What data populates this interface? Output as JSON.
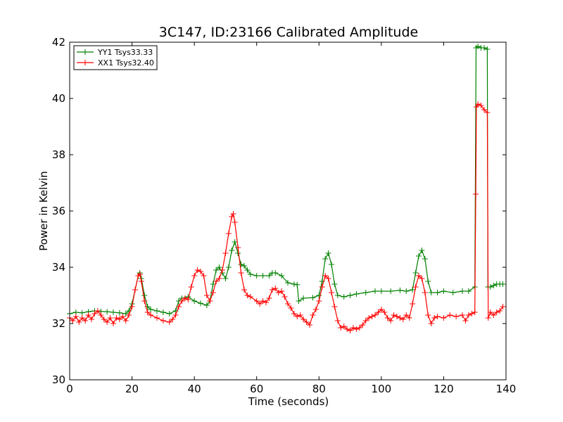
{
  "chart_data": {
    "type": "line",
    "title": "3C147, ID:23166 Calibrated Amplitude",
    "xlabel": "Time (seconds)",
    "ylabel": "Power in Kelvin",
    "xlim": [
      0,
      140
    ],
    "ylim": [
      30,
      42
    ],
    "x_ticks": [
      0,
      20,
      40,
      60,
      80,
      100,
      120,
      140
    ],
    "y_ticks": [
      30,
      32,
      34,
      36,
      38,
      40,
      42
    ],
    "grid": false,
    "legend_position": "top-left",
    "series": [
      {
        "name": "YY1 Tsys33.33",
        "color": "#008000",
        "marker": "+",
        "points": [
          [
            0,
            32.35
          ],
          [
            2,
            32.4
          ],
          [
            4,
            32.38
          ],
          [
            6,
            32.42
          ],
          [
            8,
            32.45
          ],
          [
            10,
            32.43
          ],
          [
            12,
            32.42
          ],
          [
            14,
            32.4
          ],
          [
            16,
            32.38
          ],
          [
            18,
            32.35
          ],
          [
            19,
            32.45
          ],
          [
            20,
            32.7
          ],
          [
            21,
            33.2
          ],
          [
            22,
            33.7
          ],
          [
            22.5,
            33.8
          ],
          [
            23,
            33.6
          ],
          [
            24,
            33.0
          ],
          [
            25,
            32.6
          ],
          [
            26,
            32.5
          ],
          [
            28,
            32.45
          ],
          [
            30,
            32.4
          ],
          [
            32,
            32.35
          ],
          [
            34,
            32.45
          ],
          [
            35,
            32.8
          ],
          [
            36,
            32.9
          ],
          [
            38,
            32.95
          ],
          [
            40,
            32.8
          ],
          [
            42,
            32.72
          ],
          [
            44,
            32.65
          ],
          [
            45,
            32.8
          ],
          [
            46,
            33.4
          ],
          [
            47,
            33.9
          ],
          [
            48,
            34.0
          ],
          [
            49,
            33.8
          ],
          [
            50,
            33.6
          ],
          [
            51,
            34.0
          ],
          [
            52,
            34.6
          ],
          [
            53,
            34.9
          ],
          [
            54,
            34.5
          ],
          [
            55,
            34.1
          ],
          [
            56,
            34.05
          ],
          [
            57,
            33.9
          ],
          [
            58,
            33.75
          ],
          [
            60,
            33.7
          ],
          [
            62,
            33.7
          ],
          [
            64,
            33.7
          ],
          [
            65,
            33.8
          ],
          [
            66,
            33.8
          ],
          [
            68,
            33.7
          ],
          [
            70,
            33.45
          ],
          [
            72,
            33.4
          ],
          [
            73,
            33.38
          ],
          [
            73.5,
            32.8
          ],
          [
            75,
            32.9
          ],
          [
            78,
            32.92
          ],
          [
            80,
            33.0
          ],
          [
            81,
            33.5
          ],
          [
            82,
            34.3
          ],
          [
            83,
            34.5
          ],
          [
            84,
            34.1
          ],
          [
            85,
            33.4
          ],
          [
            86,
            33.0
          ],
          [
            88,
            32.95
          ],
          [
            90,
            33.0
          ],
          [
            92,
            33.05
          ],
          [
            95,
            33.1
          ],
          [
            98,
            33.15
          ],
          [
            100,
            33.15
          ],
          [
            103,
            33.15
          ],
          [
            106,
            33.18
          ],
          [
            108,
            33.15
          ],
          [
            110,
            33.2
          ],
          [
            111,
            33.8
          ],
          [
            112,
            34.4
          ],
          [
            113,
            34.6
          ],
          [
            114,
            34.3
          ],
          [
            115,
            33.5
          ],
          [
            116,
            33.1
          ],
          [
            118,
            33.1
          ],
          [
            120,
            33.15
          ],
          [
            123,
            33.1
          ],
          [
            126,
            33.15
          ],
          [
            128,
            33.15
          ],
          [
            130,
            33.3
          ],
          [
            130.4,
            41.8
          ],
          [
            131,
            41.85
          ],
          [
            132,
            41.8
          ],
          [
            133,
            41.8
          ],
          [
            134,
            41.75
          ],
          [
            134.2,
            33.3
          ],
          [
            135,
            33.3
          ],
          [
            136,
            33.35
          ],
          [
            137,
            33.4
          ],
          [
            138,
            33.4
          ],
          [
            139,
            33.4
          ]
        ]
      },
      {
        "name": "XX1 Tsys32.40",
        "color": "#ff0000",
        "marker": "+",
        "points": [
          [
            0,
            32.2
          ],
          [
            1,
            32.1
          ],
          [
            2,
            32.25
          ],
          [
            3,
            32.05
          ],
          [
            4,
            32.2
          ],
          [
            5,
            32.1
          ],
          [
            6,
            32.3
          ],
          [
            7,
            32.15
          ],
          [
            8,
            32.35
          ],
          [
            9,
            32.45
          ],
          [
            10,
            32.3
          ],
          [
            11,
            32.15
          ],
          [
            12,
            32.05
          ],
          [
            13,
            32.2
          ],
          [
            14,
            32.0
          ],
          [
            15,
            32.2
          ],
          [
            16,
            32.15
          ],
          [
            17,
            32.25
          ],
          [
            18,
            32.1
          ],
          [
            19,
            32.3
          ],
          [
            20,
            32.6
          ],
          [
            21,
            33.2
          ],
          [
            22,
            33.7
          ],
          [
            22.6,
            33.75
          ],
          [
            23,
            33.5
          ],
          [
            24,
            32.8
          ],
          [
            25,
            32.4
          ],
          [
            26,
            32.3
          ],
          [
            28,
            32.2
          ],
          [
            30,
            32.1
          ],
          [
            32,
            32.05
          ],
          [
            33,
            32.15
          ],
          [
            34,
            32.3
          ],
          [
            35,
            32.6
          ],
          [
            36,
            32.8
          ],
          [
            37,
            32.9
          ],
          [
            38,
            32.85
          ],
          [
            39,
            33.3
          ],
          [
            40,
            33.7
          ],
          [
            41,
            33.9
          ],
          [
            42,
            33.85
          ],
          [
            43,
            33.7
          ],
          [
            44,
            33.0
          ],
          [
            45,
            32.8
          ],
          [
            46,
            33.1
          ],
          [
            47,
            33.5
          ],
          [
            48,
            33.6
          ],
          [
            49,
            33.9
          ],
          [
            50,
            34.5
          ],
          [
            51,
            35.2
          ],
          [
            52,
            35.8
          ],
          [
            52.5,
            35.9
          ],
          [
            53,
            35.6
          ],
          [
            54,
            34.7
          ],
          [
            55,
            33.8
          ],
          [
            56,
            33.2
          ],
          [
            57,
            33.0
          ],
          [
            58,
            32.95
          ],
          [
            60,
            32.8
          ],
          [
            61,
            32.7
          ],
          [
            62,
            32.8
          ],
          [
            63,
            32.75
          ],
          [
            64,
            32.9
          ],
          [
            65,
            33.2
          ],
          [
            66,
            33.25
          ],
          [
            67,
            33.1
          ],
          [
            68,
            33.15
          ],
          [
            69,
            32.95
          ],
          [
            70,
            32.7
          ],
          [
            71,
            32.55
          ],
          [
            72,
            32.35
          ],
          [
            73,
            32.25
          ],
          [
            74,
            32.3
          ],
          [
            75,
            32.15
          ],
          [
            76,
            32.05
          ],
          [
            77,
            31.95
          ],
          [
            78,
            32.3
          ],
          [
            79,
            32.5
          ],
          [
            80,
            32.8
          ],
          [
            81,
            33.3
          ],
          [
            82,
            33.7
          ],
          [
            83,
            33.6
          ],
          [
            84,
            33.1
          ],
          [
            85,
            32.6
          ],
          [
            86,
            32.1
          ],
          [
            87,
            31.85
          ],
          [
            88,
            31.9
          ],
          [
            89,
            31.8
          ],
          [
            90,
            31.75
          ],
          [
            91,
            31.85
          ],
          [
            92,
            31.8
          ],
          [
            93,
            31.85
          ],
          [
            94,
            31.95
          ],
          [
            95,
            32.1
          ],
          [
            96,
            32.2
          ],
          [
            97,
            32.25
          ],
          [
            98,
            32.3
          ],
          [
            99,
            32.4
          ],
          [
            100,
            32.5
          ],
          [
            101,
            32.4
          ],
          [
            102,
            32.2
          ],
          [
            103,
            32.1
          ],
          [
            104,
            32.3
          ],
          [
            105,
            32.25
          ],
          [
            106,
            32.2
          ],
          [
            107,
            32.15
          ],
          [
            108,
            32.3
          ],
          [
            109,
            32.2
          ],
          [
            110,
            32.7
          ],
          [
            111,
            33.3
          ],
          [
            112,
            33.7
          ],
          [
            113,
            33.6
          ],
          [
            114,
            33.1
          ],
          [
            115,
            32.3
          ],
          [
            116,
            32.0
          ],
          [
            117,
            32.2
          ],
          [
            118,
            32.25
          ],
          [
            120,
            32.2
          ],
          [
            122,
            32.3
          ],
          [
            124,
            32.25
          ],
          [
            126,
            32.3
          ],
          [
            127,
            32.1
          ],
          [
            128,
            32.3
          ],
          [
            129,
            32.35
          ],
          [
            130,
            32.4
          ],
          [
            130.3,
            36.6
          ],
          [
            130.5,
            39.7
          ],
          [
            131,
            39.8
          ],
          [
            132,
            39.75
          ],
          [
            133,
            39.6
          ],
          [
            134,
            39.5
          ],
          [
            134.3,
            32.2
          ],
          [
            135,
            32.4
          ],
          [
            136,
            32.3
          ],
          [
            137,
            32.4
          ],
          [
            138,
            32.45
          ],
          [
            139,
            32.6
          ]
        ]
      }
    ]
  }
}
